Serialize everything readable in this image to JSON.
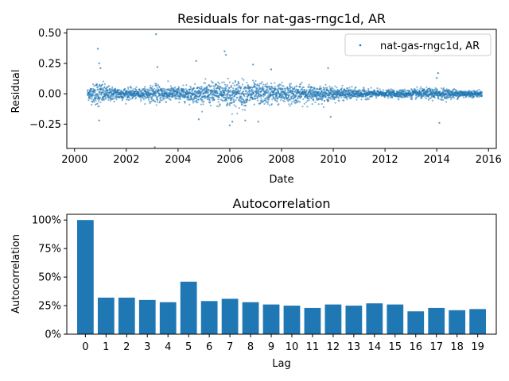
{
  "chart_data": [
    {
      "type": "scatter",
      "title": "Residuals for nat-gas-rngc1d, AR",
      "xlabel": "Date",
      "ylabel": "Residual",
      "xlim": [
        1999.7,
        2016.3
      ],
      "ylim": [
        -0.45,
        0.53
      ],
      "xticks": [
        2000,
        2002,
        2004,
        2006,
        2008,
        2010,
        2012,
        2014,
        2016
      ],
      "xtick_labels": [
        "2000",
        "2002",
        "2004",
        "2006",
        "2008",
        "2010",
        "2012",
        "2014",
        "2016"
      ],
      "yticks": [
        -0.25,
        0.0,
        0.25,
        0.5
      ],
      "ytick_labels": [
        "−0.25",
        "0.00",
        "0.25",
        "0.50"
      ],
      "legend": {
        "label": "nat-gas-rngc1d, AR",
        "position": "top-right"
      },
      "color": "#1f77b4",
      "series": {
        "name": "nat-gas-rngc1d, AR",
        "x_start": 2000.5,
        "x_end": 2015.75,
        "volatility_profile": [
          {
            "x": 2000.5,
            "std": 0.03
          },
          {
            "x": 2000.9,
            "std": 0.07
          },
          {
            "x": 2001.3,
            "std": 0.04
          },
          {
            "x": 2002.5,
            "std": 0.025
          },
          {
            "x": 2003.2,
            "std": 0.05
          },
          {
            "x": 2004.0,
            "std": 0.035
          },
          {
            "x": 2005.0,
            "std": 0.05
          },
          {
            "x": 2006.0,
            "std": 0.08
          },
          {
            "x": 2007.0,
            "std": 0.06
          },
          {
            "x": 2008.5,
            "std": 0.05
          },
          {
            "x": 2010.0,
            "std": 0.035
          },
          {
            "x": 2012.0,
            "std": 0.018
          },
          {
            "x": 2014.0,
            "std": 0.03
          },
          {
            "x": 2015.75,
            "std": 0.015
          }
        ],
        "outliers": [
          {
            "x": 2000.9,
            "y": 0.37
          },
          {
            "x": 2000.95,
            "y": 0.25
          },
          {
            "x": 2001.0,
            "y": 0.21
          },
          {
            "x": 2000.95,
            "y": -0.22
          },
          {
            "x": 2003.15,
            "y": 0.49
          },
          {
            "x": 2003.1,
            "y": -0.44
          },
          {
            "x": 2003.2,
            "y": 0.22
          },
          {
            "x": 2004.7,
            "y": 0.27
          },
          {
            "x": 2004.8,
            "y": -0.21
          },
          {
            "x": 2005.8,
            "y": 0.35
          },
          {
            "x": 2005.85,
            "y": 0.32
          },
          {
            "x": 2006.0,
            "y": -0.26
          },
          {
            "x": 2006.1,
            "y": -0.23
          },
          {
            "x": 2006.9,
            "y": 0.24
          },
          {
            "x": 2006.6,
            "y": -0.22
          },
          {
            "x": 2007.1,
            "y": -0.23
          },
          {
            "x": 2007.6,
            "y": 0.2
          },
          {
            "x": 2009.8,
            "y": 0.21
          },
          {
            "x": 2009.9,
            "y": -0.19
          },
          {
            "x": 2014.05,
            "y": 0.17
          },
          {
            "x": 2014.1,
            "y": -0.24
          },
          {
            "x": 2014.0,
            "y": 0.13
          }
        ]
      }
    },
    {
      "type": "bar",
      "title": "Autocorrelation",
      "xlabel": "Lag",
      "ylabel": "Autocorrelation",
      "ylim": [
        0,
        1.05
      ],
      "yticks": [
        0,
        0.25,
        0.5,
        0.75,
        1.0
      ],
      "ytick_labels": [
        "0%",
        "25%",
        "50%",
        "75%",
        "100%"
      ],
      "categories": [
        "0",
        "1",
        "2",
        "3",
        "4",
        "5",
        "6",
        "7",
        "8",
        "9",
        "10",
        "11",
        "12",
        "13",
        "14",
        "15",
        "16",
        "17",
        "18",
        "19"
      ],
      "values": [
        1.0,
        0.32,
        0.32,
        0.3,
        0.28,
        0.46,
        0.29,
        0.31,
        0.28,
        0.26,
        0.25,
        0.23,
        0.26,
        0.25,
        0.27,
        0.26,
        0.2,
        0.23,
        0.21,
        0.22
      ],
      "color": "#1f77b4"
    }
  ]
}
